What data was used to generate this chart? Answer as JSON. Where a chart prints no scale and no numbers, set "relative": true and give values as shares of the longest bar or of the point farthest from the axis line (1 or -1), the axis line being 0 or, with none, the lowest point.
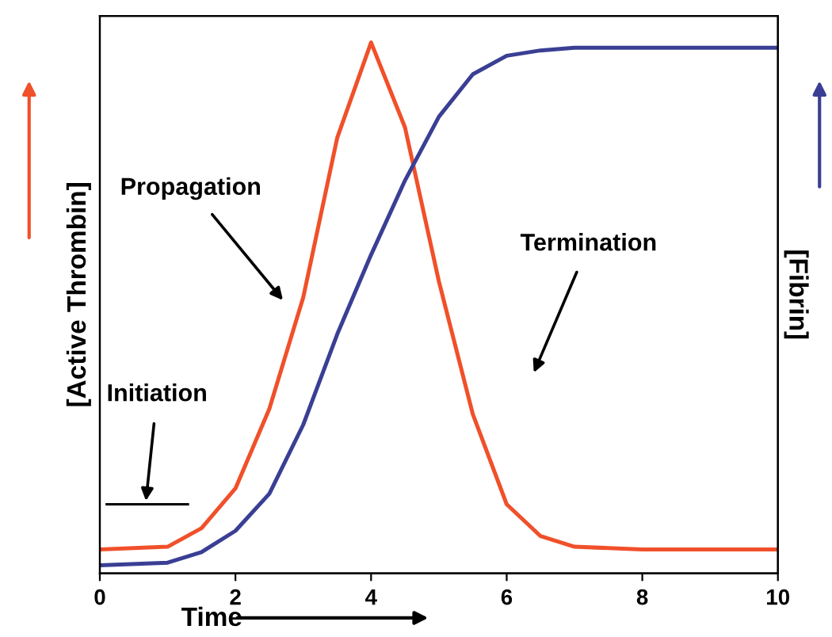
{
  "chart_data": {
    "type": "line",
    "relative": true,
    "xlabel": "Time",
    "ylabel": "[Active Thrombin]",
    "y2label": "[Fibrin]",
    "x": [
      0,
      1,
      1.5,
      2,
      2.5,
      3,
      3.5,
      4,
      4.5,
      5,
      5.5,
      6,
      6.5,
      7,
      8,
      9,
      10
    ],
    "xlim": [
      0,
      10
    ],
    "xticks": [
      0,
      2,
      4,
      6,
      8,
      10
    ],
    "series": [
      {
        "color": "#f0502a",
        "values": [
          0.045,
          0.05,
          0.085,
          0.16,
          0.31,
          0.52,
          0.82,
          1.0,
          0.84,
          0.55,
          0.3,
          0.13,
          0.07,
          0.05,
          0.045,
          0.045,
          0.045
        ]
      },
      {
        "color": "#3a3f94",
        "values": [
          0.015,
          0.02,
          0.04,
          0.08,
          0.15,
          0.28,
          0.45,
          0.6,
          0.74,
          0.86,
          0.94,
          0.975,
          0.985,
          0.99,
          0.99,
          0.99,
          0.99
        ]
      },
      {
        "type": "line",
        "color": "#000000",
        "x": [
          0.1,
          1.3
        ],
        "values": [
          0.13,
          0.13
        ]
      }
    ],
    "annotations": [
      "Propagation",
      "Termination",
      "Initiation"
    ],
    "grid": false,
    "marker": "none",
    "line_style": "solid"
  }
}
